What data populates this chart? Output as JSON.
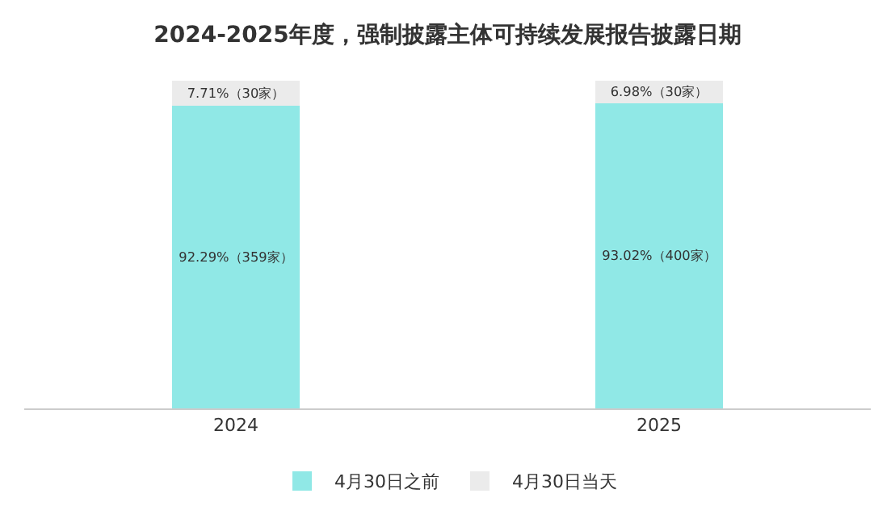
{
  "chart_data": {
    "type": "bar",
    "title": "2024-2025年度，强制披露主体可持续发展报告披露日期",
    "categories": [
      "2024",
      "2025"
    ],
    "stacked": true,
    "legend": "bottom",
    "series": [
      {
        "name": "4月30日之前",
        "color": "#90e8e6",
        "values": [
          92.29,
          93.02
        ],
        "value_labels": [
          "92.29%（359家）",
          "93.02%（400家）"
        ]
      },
      {
        "name": "4月30日当天",
        "color": "#ebebeb",
        "values": [
          7.71,
          6.98
        ],
        "value_labels": [
          "7.71%（30家）",
          "6.98%（30家）"
        ]
      }
    ]
  }
}
